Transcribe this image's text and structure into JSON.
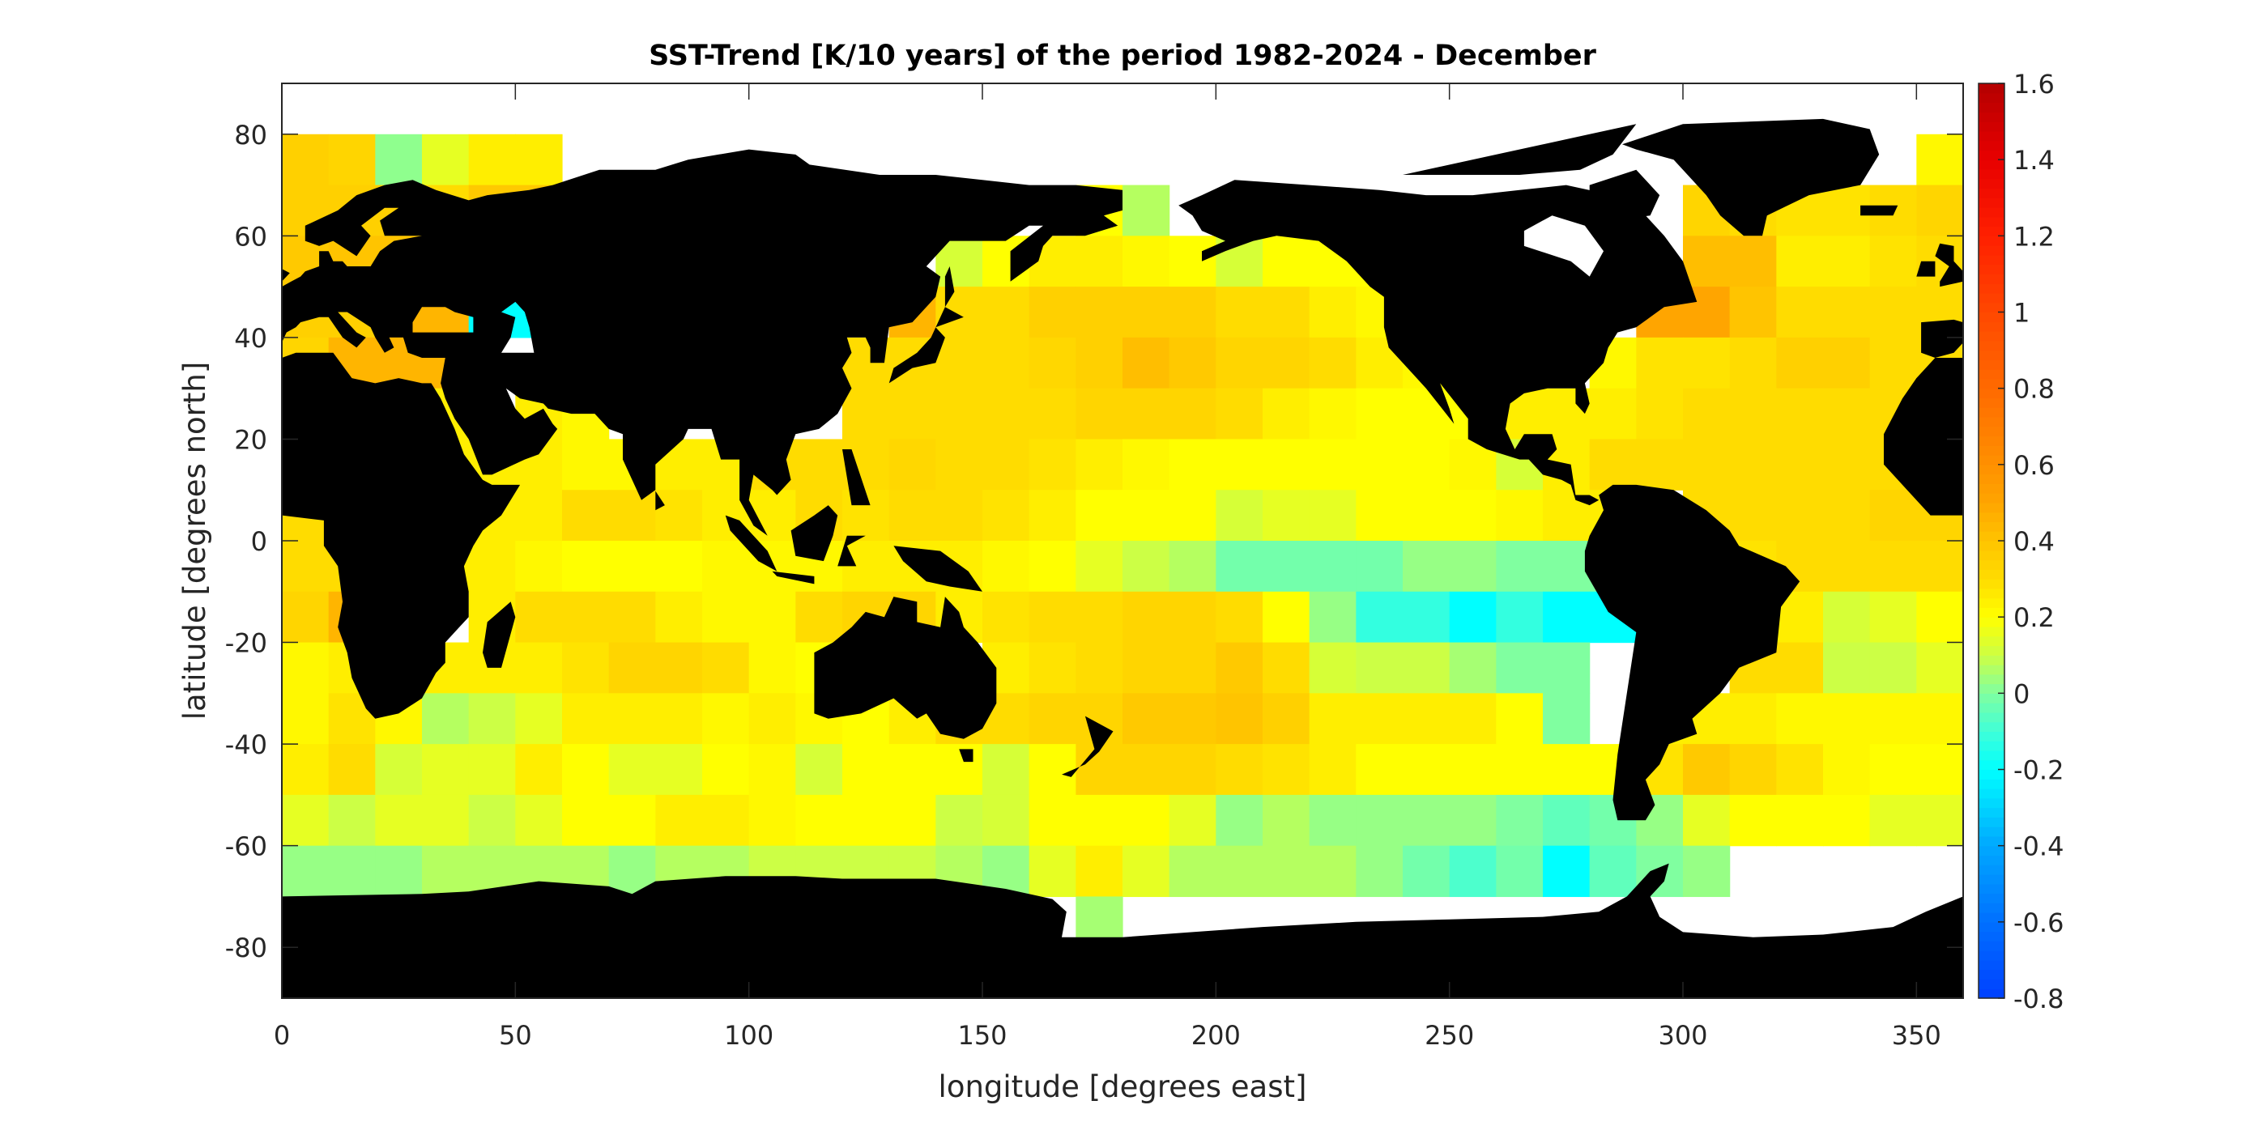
{
  "chart_data": {
    "type": "heatmap",
    "title": "SST-Trend [K/10 years] of the period 1982-2024 - December",
    "xlabel": "longitude [degrees east]",
    "ylabel": "latitude [degrees north]",
    "xlim": [
      0,
      360
    ],
    "ylim": [
      -90,
      90
    ],
    "xticks": [
      "0",
      "50",
      "100",
      "150",
      "200",
      "250",
      "300",
      "350"
    ],
    "yticks": [
      "80",
      "60",
      "40",
      "20",
      "0",
      "-20",
      "-40",
      "-60",
      "-80"
    ],
    "cell_size_degrees": 10,
    "lon_edges_start": 0,
    "lat_rows_top_edges": [
      80,
      70,
      60,
      50,
      40,
      30,
      20,
      10,
      0,
      -10,
      -20,
      -30,
      -40,
      -50,
      -60,
      -70
    ],
    "land_color": "#000000",
    "missing_color": "#ffffff",
    "colorbar": {
      "range": [
        -0.8,
        1.6
      ],
      "ticks": [
        "1.6",
        "1.4",
        "1.2",
        "1",
        "0.8",
        "0.6",
        "0.4",
        "0.2",
        "0",
        "-0.2",
        "-0.4",
        "-0.6",
        "-0.8"
      ],
      "position": "right",
      "colorscale": [
        [
          -0.8,
          "#0040ff"
        ],
        [
          -0.6,
          "#0070ff"
        ],
        [
          -0.4,
          "#00a8ff"
        ],
        [
          -0.2,
          "#00ffff"
        ],
        [
          -0.1,
          "#40ffd8"
        ],
        [
          0,
          "#80ffa0"
        ],
        [
          0.1,
          "#ccff45"
        ],
        [
          0.2,
          "#ffff00"
        ],
        [
          0.3,
          "#ffdc00"
        ],
        [
          0.4,
          "#ffc400"
        ],
        [
          0.5,
          "#ffa500"
        ],
        [
          0.6,
          "#ff9000"
        ],
        [
          0.8,
          "#ff6a00"
        ],
        [
          1.0,
          "#ff4800"
        ],
        [
          1.2,
          "#ff2000"
        ],
        [
          1.4,
          "#e80000"
        ],
        [
          1.6,
          "#b40000"
        ]
      ]
    },
    "values": [
      [
        0.35,
        0.33,
        0.02,
        0.15,
        0.25,
        0.25,
        null,
        null,
        null,
        null,
        null,
        null,
        null,
        null,
        null,
        null,
        null,
        null,
        null,
        null,
        null,
        null,
        null,
        null,
        null,
        null,
        null,
        null,
        null,
        null,
        null,
        null,
        null,
        null,
        null,
        0.22
      ],
      [
        0.35,
        0.35,
        0.35,
        0.3,
        0.38,
        0.38,
        null,
        null,
        null,
        null,
        null,
        null,
        null,
        null,
        null,
        null,
        null,
        0.2,
        0.07,
        null,
        null,
        null,
        null,
        null,
        null,
        null,
        null,
        null,
        null,
        null,
        0.33,
        0.3,
        0.28,
        0.28,
        0.3,
        0.33
      ],
      [
        0.38,
        0.4,
        0.4,
        null,
        null,
        null,
        null,
        null,
        null,
        null,
        null,
        null,
        null,
        null,
        0.12,
        0.2,
        0.25,
        0.25,
        0.22,
        0.2,
        0.12,
        0.2,
        0.2,
        0.2,
        null,
        null,
        null,
        null,
        null,
        null,
        0.42,
        0.42,
        0.25,
        0.25,
        0.28,
        0.3
      ],
      [
        0.35,
        0.35,
        0.45,
        0.45,
        -0.2,
        -0.2,
        null,
        null,
        null,
        null,
        null,
        null,
        null,
        0.45,
        0.3,
        0.3,
        0.35,
        0.35,
        0.35,
        0.35,
        0.3,
        0.3,
        0.25,
        0.22,
        null,
        null,
        null,
        null,
        null,
        0.5,
        0.5,
        0.4,
        0.3,
        0.3,
        0.3,
        0.3
      ],
      [
        0.33,
        0.45,
        0.45,
        0.45,
        null,
        null,
        null,
        null,
        null,
        null,
        null,
        null,
        0.3,
        0.3,
        0.3,
        0.3,
        0.32,
        0.35,
        0.42,
        0.38,
        0.33,
        0.33,
        0.3,
        0.25,
        0.22,
        null,
        null,
        null,
        0.22,
        0.28,
        0.28,
        0.3,
        0.35,
        0.35,
        0.3,
        0.3
      ],
      [
        null,
        null,
        null,
        0.25,
        null,
        0.25,
        0.22,
        null,
        null,
        null,
        null,
        null,
        0.3,
        0.3,
        0.3,
        0.3,
        0.3,
        0.33,
        0.33,
        0.33,
        0.3,
        0.25,
        0.22,
        0.2,
        0.2,
        0.2,
        0.25,
        0.25,
        0.25,
        0.28,
        0.3,
        0.3,
        0.3,
        0.3,
        0.3,
        0.28
      ],
      [
        null,
        null,
        null,
        0.25,
        0.25,
        0.25,
        0.22,
        0.22,
        0.25,
        0.25,
        0.3,
        0.3,
        0.3,
        0.32,
        0.3,
        0.3,
        0.28,
        0.25,
        0.22,
        0.2,
        0.2,
        0.2,
        0.2,
        0.2,
        0.2,
        0.22,
        0.12,
        0.25,
        0.3,
        0.3,
        0.3,
        0.3,
        0.3,
        0.3,
        0.3,
        0.3
      ],
      [
        0.3,
        0.3,
        null,
        null,
        0.25,
        0.25,
        0.3,
        0.3,
        0.28,
        0.25,
        0.25,
        0.3,
        0.28,
        0.3,
        0.3,
        0.28,
        0.25,
        0.2,
        0.2,
        0.2,
        0.12,
        0.15,
        0.15,
        0.2,
        0.2,
        0.2,
        0.22,
        0.25,
        0.25,
        null,
        0.3,
        0.3,
        0.3,
        0.3,
        0.33,
        0.33
      ],
      [
        0.3,
        0.3,
        null,
        0.25,
        0.25,
        0.22,
        0.2,
        0.2,
        0.2,
        0.22,
        0.22,
        0.22,
        0.25,
        0.25,
        0.25,
        0.22,
        0.2,
        0.15,
        0.1,
        0.07,
        -0.02,
        -0.02,
        -0.02,
        -0.02,
        0.03,
        0.03,
        0.0,
        0.0,
        0.0,
        null,
        null,
        0.28,
        0.3,
        0.3,
        0.3,
        0.3
      ],
      [
        0.33,
        0.45,
        null,
        null,
        0.25,
        0.3,
        0.3,
        0.3,
        0.25,
        0.22,
        0.22,
        0.3,
        0.33,
        0.33,
        0.25,
        0.28,
        0.3,
        0.3,
        0.33,
        0.33,
        0.3,
        0.2,
        0.03,
        -0.12,
        -0.12,
        -0.2,
        -0.12,
        -0.2,
        -0.2,
        null,
        null,
        0.2,
        0.25,
        0.12,
        0.15,
        0.2
      ],
      [
        0.22,
        0.25,
        null,
        0.25,
        0.25,
        0.25,
        0.28,
        0.33,
        0.33,
        0.3,
        0.22,
        0.2,
        0.25,
        null,
        null,
        0.25,
        0.28,
        0.3,
        0.33,
        0.33,
        0.38,
        0.3,
        0.12,
        0.1,
        0.1,
        0.05,
        0.0,
        0.0,
        null,
        null,
        null,
        0.3,
        0.3,
        0.1,
        0.1,
        0.15
      ],
      [
        0.22,
        0.28,
        0.22,
        0.07,
        0.1,
        0.15,
        0.25,
        0.25,
        0.25,
        0.22,
        0.25,
        0.22,
        0.2,
        0.25,
        0.3,
        0.3,
        0.33,
        0.33,
        0.38,
        0.38,
        0.4,
        0.35,
        0.25,
        0.25,
        0.25,
        0.25,
        0.2,
        0.0,
        null,
        0.25,
        0.25,
        0.25,
        0.22,
        0.22,
        0.22,
        0.22
      ],
      [
        0.25,
        0.3,
        0.12,
        0.15,
        0.15,
        0.25,
        0.2,
        0.15,
        0.15,
        0.2,
        0.22,
        0.12,
        0.2,
        0.2,
        0.2,
        0.12,
        0.2,
        0.33,
        0.33,
        0.33,
        0.3,
        0.28,
        0.25,
        0.2,
        0.2,
        0.2,
        0.2,
        0.2,
        0.2,
        0.28,
        0.38,
        0.33,
        0.28,
        0.22,
        0.2,
        0.2
      ],
      [
        0.15,
        0.1,
        0.15,
        0.15,
        0.1,
        0.15,
        0.2,
        0.2,
        0.25,
        0.25,
        0.22,
        0.2,
        0.2,
        0.2,
        0.1,
        0.12,
        0.2,
        0.2,
        0.2,
        0.15,
        0.03,
        0.07,
        0.03,
        0.03,
        0.03,
        0.03,
        0.0,
        -0.05,
        -0.02,
        0.03,
        0.15,
        0.2,
        0.2,
        0.2,
        0.15,
        0.15
      ],
      [
        0.03,
        0.03,
        0.03,
        0.07,
        0.07,
        0.07,
        0.07,
        0.03,
        0.07,
        0.07,
        0.1,
        0.1,
        0.1,
        0.1,
        0.07,
        0.03,
        0.15,
        0.25,
        0.15,
        0.07,
        0.07,
        0.07,
        0.07,
        0.03,
        -0.02,
        -0.08,
        -0.02,
        -0.2,
        -0.05,
        0.0,
        0.03,
        null,
        null,
        null,
        null,
        null
      ],
      [
        null,
        null,
        null,
        null,
        null,
        null,
        null,
        null,
        null,
        null,
        null,
        null,
        null,
        null,
        null,
        null,
        null,
        0.05,
        null,
        null,
        null,
        null,
        null,
        null,
        null,
        null,
        null,
        null,
        null,
        null,
        null,
        null,
        null,
        null,
        null,
        null
      ]
    ]
  }
}
